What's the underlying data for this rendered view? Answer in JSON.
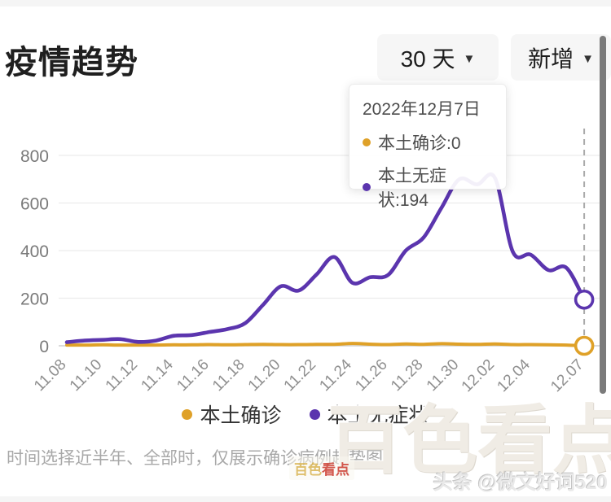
{
  "header": {
    "title": "疫情趋势"
  },
  "controls": {
    "range_selector": {
      "label": "30 天",
      "caret": "▼"
    },
    "type_selector": {
      "label": "新增",
      "caret": "▼"
    }
  },
  "tooltip": {
    "date": "2022年12月7日",
    "rows": [
      {
        "text": "本土确诊:0",
        "color": "#DFA128"
      },
      {
        "text": "本土无症状:194",
        "color": "#5B35AE"
      }
    ]
  },
  "chart_data": {
    "type": "line",
    "x": [
      "11.08",
      "11.09",
      "11.10",
      "11.11",
      "11.12",
      "11.13",
      "11.14",
      "11.15",
      "11.16",
      "11.17",
      "11.18",
      "11.19",
      "11.20",
      "11.21",
      "11.22",
      "11.23",
      "11.24",
      "11.25",
      "11.26",
      "11.27",
      "11.28",
      "11.29",
      "11.30",
      "12.01",
      "12.02",
      "12.03",
      "12.04",
      "12.05",
      "12.06",
      "12.07"
    ],
    "x_tick_labels": [
      "11.08",
      "11.10",
      "11.12",
      "11.14",
      "11.16",
      "11.18",
      "11.20",
      "11.22",
      "11.24",
      "11.26",
      "11.28",
      "11.30",
      "12.02",
      "12.04",
      "12.07"
    ],
    "series": [
      {
        "name": "本土确诊",
        "color": "#DFA128",
        "values": [
          3,
          3,
          4,
          3,
          3,
          3,
          4,
          4,
          5,
          4,
          5,
          6,
          5,
          5,
          6,
          6,
          10,
          7,
          5,
          8,
          6,
          9,
          7,
          6,
          8,
          5,
          5,
          4,
          3,
          0
        ]
      },
      {
        "name": "本土无症状",
        "color": "#5B35AE",
        "values": [
          15,
          22,
          25,
          28,
          16,
          22,
          42,
          45,
          58,
          70,
          95,
          172,
          250,
          232,
          300,
          373,
          265,
          288,
          297,
          400,
          455,
          580,
          700,
          678,
          705,
          395,
          383,
          318,
          328,
          194
        ]
      }
    ],
    "ylim": [
      0,
      800
    ],
    "yticks": [
      0,
      200,
      400,
      600,
      800
    ],
    "grid": "horizontal",
    "legend_position": "bottom",
    "highlighted_point": {
      "x": "12.07",
      "本土确诊": 0,
      "本土无症状": 194
    }
  },
  "legend": {
    "items": [
      {
        "label": "本土确诊",
        "color": "#DFA128"
      },
      {
        "label": "本土无症状",
        "color": "#5B35AE"
      }
    ]
  },
  "caption": "时间选择近半年、全部时，仅展示确诊病例趋势图",
  "watermarks": {
    "large": "百色看点",
    "badge_gold": "百色",
    "badge_red": "看点",
    "byline": "头条 @微文好词520"
  }
}
